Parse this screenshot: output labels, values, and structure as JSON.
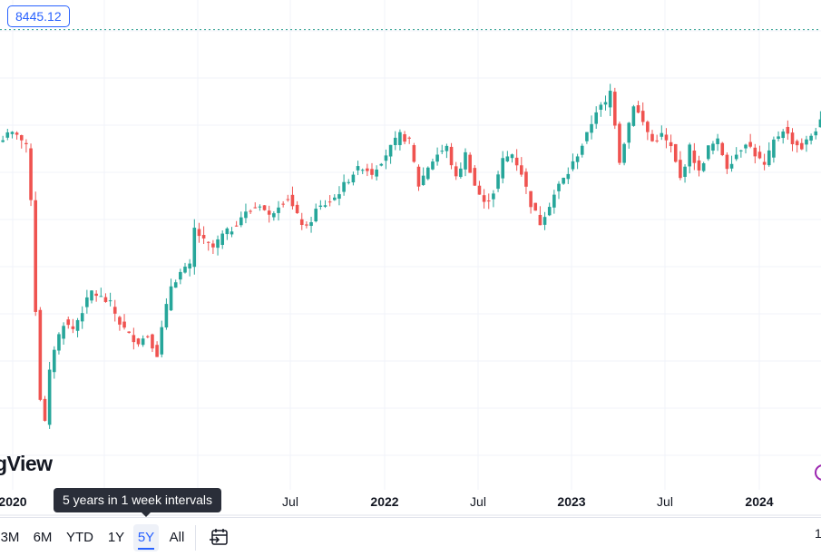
{
  "chart_data": {
    "type": "candlestick",
    "interval": "1 week",
    "colors": {
      "up": "#26a69a",
      "down": "#ef5350",
      "last_price_line": "#2a9d8f"
    },
    "last_price_label": "8445.12",
    "x_tick_labels": [
      {
        "label": "2020",
        "bold": true
      },
      {
        "label": "Jul",
        "bold": false
      },
      {
        "label": "2022",
        "bold": true
      },
      {
        "label": "Jul",
        "bold": false
      },
      {
        "label": "2023",
        "bold": true
      },
      {
        "label": "Jul",
        "bold": false
      },
      {
        "label": "2024",
        "bold": true
      }
    ],
    "grid": true,
    "price_keyframes": [
      [
        0,
        7550
      ],
      [
        2,
        7600
      ],
      [
        4,
        7620
      ],
      [
        6,
        7500
      ],
      [
        7,
        7100
      ],
      [
        8,
        6200
      ],
      [
        9,
        5500
      ],
      [
        10,
        5300
      ],
      [
        11,
        5700
      ],
      [
        12,
        5900
      ],
      [
        14,
        6100
      ],
      [
        16,
        6050
      ],
      [
        18,
        6200
      ],
      [
        20,
        6350
      ],
      [
        22,
        6300
      ],
      [
        24,
        6250
      ],
      [
        26,
        6100
      ],
      [
        28,
        6000
      ],
      [
        30,
        5950
      ],
      [
        32,
        6000
      ],
      [
        34,
        5850
      ],
      [
        35,
        6050
      ],
      [
        37,
        6400
      ],
      [
        39,
        6500
      ],
      [
        41,
        6550
      ],
      [
        42,
        6850
      ],
      [
        44,
        6750
      ],
      [
        46,
        6700
      ],
      [
        48,
        6800
      ],
      [
        50,
        6850
      ],
      [
        52,
        6950
      ],
      [
        54,
        7000
      ],
      [
        56,
        7050
      ],
      [
        58,
        6950
      ],
      [
        60,
        7050
      ],
      [
        62,
        7100
      ],
      [
        64,
        6950
      ],
      [
        66,
        6850
      ],
      [
        68,
        7000
      ],
      [
        70,
        7050
      ],
      [
        72,
        7100
      ],
      [
        74,
        7200
      ],
      [
        76,
        7300
      ],
      [
        78,
        7350
      ],
      [
        80,
        7300
      ],
      [
        82,
        7400
      ],
      [
        84,
        7500
      ],
      [
        86,
        7600
      ],
      [
        88,
        7550
      ],
      [
        90,
        7200
      ],
      [
        92,
        7350
      ],
      [
        94,
        7450
      ],
      [
        96,
        7500
      ],
      [
        98,
        7250
      ],
      [
        100,
        7450
      ],
      [
        102,
        7200
      ],
      [
        104,
        7050
      ],
      [
        106,
        7150
      ],
      [
        108,
        7400
      ],
      [
        110,
        7450
      ],
      [
        112,
        7300
      ],
      [
        114,
        7050
      ],
      [
        116,
        6900
      ],
      [
        118,
        7050
      ],
      [
        120,
        7200
      ],
      [
        122,
        7300
      ],
      [
        124,
        7450
      ],
      [
        126,
        7600
      ],
      [
        128,
        7800
      ],
      [
        130,
        7850
      ],
      [
        131,
        7950
      ],
      [
        132,
        7700
      ],
      [
        133,
        7400
      ],
      [
        134,
        7550
      ],
      [
        136,
        7850
      ],
      [
        138,
        7700
      ],
      [
        140,
        7550
      ],
      [
        142,
        7600
      ],
      [
        144,
        7500
      ],
      [
        146,
        7250
      ],
      [
        148,
        7500
      ],
      [
        150,
        7300
      ],
      [
        152,
        7500
      ],
      [
        154,
        7550
      ],
      [
        156,
        7350
      ],
      [
        158,
        7450
      ],
      [
        160,
        7550
      ],
      [
        162,
        7450
      ],
      [
        164,
        7350
      ],
      [
        166,
        7550
      ],
      [
        168,
        7650
      ],
      [
        170,
        7550
      ],
      [
        172,
        7500
      ],
      [
        174,
        7600
      ],
      [
        176,
        7700
      ],
      [
        178,
        7900
      ],
      [
        180,
        8150
      ],
      [
        181,
        8300
      ]
    ]
  },
  "logo": {
    "text": "gView"
  },
  "tooltip": {
    "text": "5 years in 1 week intervals"
  },
  "toolbar": {
    "ranges": [
      {
        "label": "3M",
        "active": false
      },
      {
        "label": "6M",
        "active": false
      },
      {
        "label": "YTD",
        "active": false
      },
      {
        "label": "1Y",
        "active": false
      },
      {
        "label": "5Y",
        "active": true
      },
      {
        "label": "All",
        "active": false
      }
    ],
    "date_range_icon": "calendar-arrow-icon",
    "edge_glyph": "1"
  }
}
